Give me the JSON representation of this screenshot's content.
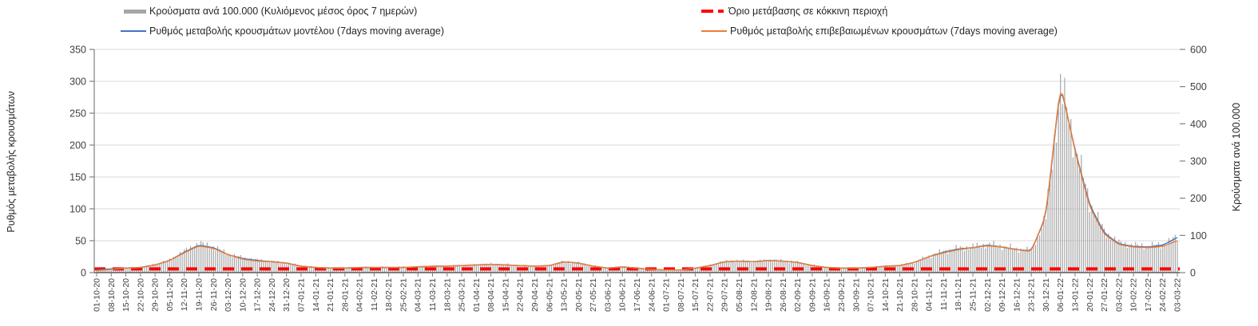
{
  "legend": [
    {
      "label": "Κρούσματα ανά 100.000 (Κυλιόμενος μέσος όρος 7 ημερών)",
      "swatch": "bar",
      "color": "#a6a6a6"
    },
    {
      "label": "Όριο μετάβασης σε κόκκινη περιοχή",
      "swatch": "dash",
      "color": "#ff0000"
    },
    {
      "label": "Ρυθμός μεταβολής κρουσμάτων μοντέλου (7days moving average)",
      "swatch": "line",
      "color": "#4472c4"
    },
    {
      "label": "Ρυθμός μεταβολής επιβεβαιωμένων κρουσμάτων (7days moving average)",
      "swatch": "line",
      "color": "#ed7d31"
    }
  ],
  "chart_data": {
    "type": "bar",
    "subtype": "combo-daily-bars-with-lines",
    "grid": "horizontal",
    "legend_position": "top",
    "left_axis": {
      "title": "Ρυθμός μεταβολής κρουσμάτων",
      "min": 0,
      "max": 350,
      "ticks": [
        0,
        50,
        100,
        150,
        200,
        250,
        300,
        350
      ]
    },
    "right_axis": {
      "title": "Κρούσματα ανά 100.000",
      "min": 0,
      "max": 600,
      "ticks": [
        0,
        100,
        200,
        300,
        400,
        500,
        600
      ]
    },
    "x_weekly_labels": [
      "01-10-20",
      "08-10-20",
      "15-10-20",
      "22-10-20",
      "29-10-20",
      "05-11-20",
      "12-11-20",
      "19-11-20",
      "26-11-20",
      "03-12-20",
      "10-12-20",
      "17-12-20",
      "24-12-20",
      "31-12-20",
      "07-01-21",
      "14-01-21",
      "21-01-21",
      "28-01-21",
      "04-02-21",
      "11-02-21",
      "18-02-21",
      "25-02-21",
      "04-03-21",
      "11-03-21",
      "18-03-21",
      "25-03-21",
      "01-04-21",
      "08-04-21",
      "15-04-21",
      "22-04-21",
      "29-04-21",
      "06-05-21",
      "13-05-21",
      "20-05-21",
      "27-05-21",
      "03-06-21",
      "10-06-21",
      "17-06-21",
      "24-06-21",
      "01-07-21",
      "08-07-21",
      "15-07-21",
      "22-07-21",
      "29-07-21",
      "05-08-21",
      "12-08-21",
      "19-08-21",
      "26-08-21",
      "02-09-21",
      "09-09-21",
      "16-09-21",
      "23-09-21",
      "30-09-21",
      "07-10-21",
      "14-10-21",
      "21-10-21",
      "28-10-21",
      "04-11-21",
      "11-11-21",
      "18-11-21",
      "25-11-21",
      "02-12-21",
      "09-12-21",
      "16-12-21",
      "23-12-21",
      "30-12-21",
      "06-01-22",
      "13-01-22",
      "20-01-22",
      "27-01-22",
      "03-02-22",
      "10-02-22",
      "17-02-22",
      "24-02-22",
      "03-03-22"
    ],
    "series": [
      {
        "name": "Κρούσματα ανά 100.000 (Κυλιόμενος μέσος όρος 7 ημερών)",
        "type": "bar",
        "axis": "right",
        "color": "#a6a6a6",
        "values": [
          8,
          10,
          12,
          15,
          22,
          34,
          58,
          78,
          70,
          50,
          40,
          34,
          30,
          26,
          18,
          15,
          13,
          13,
          14,
          15,
          15,
          15,
          16,
          17,
          18,
          19,
          21,
          23,
          22,
          19,
          17,
          19,
          30,
          26,
          18,
          13,
          16,
          13,
          9,
          7,
          8,
          12,
          20,
          30,
          32,
          30,
          34,
          32,
          28,
          20,
          14,
          13,
          12,
          14,
          17,
          20,
          28,
          45,
          58,
          66,
          70,
          76,
          72,
          64,
          60,
          150,
          505,
          340,
          190,
          110,
          80,
          73,
          72,
          75,
          95
        ]
      },
      {
        "name": "Ρυθμός μεταβολής κρουσμάτων μοντέλου (7days moving average)",
        "type": "line",
        "axis": "left",
        "color": "#4472c4",
        "values": [
          4,
          6,
          7,
          8,
          12,
          19,
          32,
          43,
          39,
          28,
          22,
          19,
          17,
          15,
          10,
          8,
          7,
          7,
          8,
          8,
          8,
          8,
          9,
          10,
          10,
          11,
          12,
          13,
          12,
          11,
          10,
          11,
          17,
          15,
          10,
          7,
          9,
          7,
          5,
          4,
          4,
          7,
          11,
          17,
          18,
          17,
          19,
          18,
          16,
          11,
          8,
          7,
          7,
          8,
          10,
          11,
          16,
          25,
          32,
          37,
          39,
          43,
          40,
          36,
          34,
          88,
          295,
          192,
          106,
          62,
          45,
          41,
          40,
          43,
          55
        ]
      },
      {
        "name": "Ρυθμός μεταβολής επιβεβαιωμένων κρουσμάτων (7days moving average)",
        "type": "line",
        "axis": "left",
        "color": "#ed7d31",
        "values": [
          3,
          5,
          7,
          8,
          12,
          19,
          31,
          42,
          38,
          28,
          21,
          18,
          17,
          15,
          10,
          8,
          7,
          7,
          8,
          8,
          8,
          8,
          9,
          10,
          10,
          11,
          12,
          13,
          12,
          11,
          10,
          11,
          17,
          15,
          10,
          7,
          9,
          7,
          5,
          4,
          4,
          7,
          11,
          17,
          18,
          17,
          19,
          18,
          16,
          11,
          8,
          7,
          7,
          8,
          10,
          11,
          16,
          25,
          31,
          36,
          39,
          42,
          40,
          36,
          33,
          90,
          298,
          190,
          103,
          60,
          44,
          40,
          39,
          41,
          50
        ]
      },
      {
        "name": "Όριο μετάβασης σε κόκκινη περιοχή",
        "type": "dashed-threshold",
        "axis": "right",
        "color": "#ff0000",
        "value": 10
      }
    ]
  }
}
